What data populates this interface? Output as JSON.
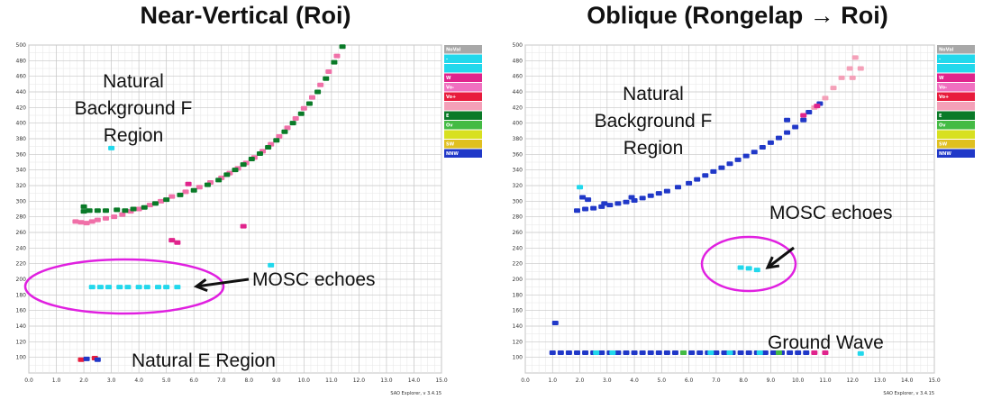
{
  "chart_data": [
    {
      "type": "scatter",
      "title": "Near-Vertical (Roi)",
      "xlabel": "",
      "ylabel": "",
      "xlim": [
        0,
        15
      ],
      "ylim": [
        80,
        500
      ],
      "x_ticks": [
        "0.0",
        "1.0",
        "2.0",
        "3.0",
        "4.0",
        "5.0",
        "6.0",
        "7.0",
        "8.0",
        "9.0",
        "10.0",
        "11.0",
        "12.0",
        "13.0",
        "14.0",
        "15.0"
      ],
      "y_ticks": [
        "100",
        "120",
        "140",
        "160",
        "180",
        "200",
        "220",
        "240",
        "260",
        "280",
        "300",
        "320",
        "340",
        "360",
        "380",
        "400",
        "420",
        "440",
        "460",
        "480",
        "500"
      ],
      "grid": true,
      "legend_position": "right",
      "legend": [
        {
          "label": "NoVal",
          "color": "#a8a8a8"
        },
        {
          "label": "-",
          "color": "#22d8ec"
        },
        {
          "label": "",
          "color": "#22d8ec"
        },
        {
          "label": "W",
          "color": "#e0248c"
        },
        {
          "label": "Vo-",
          "color": "#f070c0"
        },
        {
          "label": "Vo+",
          "color": "#e81c3c"
        },
        {
          "label": "",
          "color": "#f4a0b8"
        },
        {
          "label": "E",
          "color": "#0a7a28"
        },
        {
          "label": "Ov",
          "color": "#44bb44"
        },
        {
          "label": "",
          "color": "#d8e020"
        },
        {
          "label": "SW",
          "color": "#e0c020"
        },
        {
          "label": "NNW",
          "color": "#2038c8"
        }
      ],
      "annotations": [
        {
          "text": "Natural Background F Region",
          "lines": [
            "Natural",
            "Background F",
            "Region"
          ]
        },
        {
          "text": "MOSC echoes"
        },
        {
          "text": "Natural E Region"
        }
      ],
      "series": [
        {
          "color": "#f070a8",
          "points": [
            [
              1.7,
              274
            ],
            [
              1.9,
              273
            ],
            [
              2.1,
              272
            ],
            [
              2.3,
              274
            ],
            [
              2.5,
              276
            ],
            [
              2.8,
              278
            ],
            [
              3.1,
              280
            ],
            [
              3.4,
              283
            ],
            [
              3.7,
              287
            ],
            [
              4.0,
              290
            ],
            [
              4.4,
              295
            ],
            [
              4.8,
              300
            ],
            [
              5.2,
              306
            ],
            [
              5.7,
              312
            ],
            [
              6.2,
              318
            ],
            [
              6.6,
              324
            ],
            [
              7.0,
              330
            ],
            [
              7.3,
              336
            ],
            [
              7.6,
              342
            ],
            [
              7.9,
              349
            ],
            [
              8.2,
              356
            ],
            [
              8.5,
              364
            ],
            [
              8.8,
              373
            ],
            [
              9.1,
              383
            ],
            [
              9.4,
              394
            ],
            [
              9.7,
              406
            ],
            [
              10.0,
              419
            ],
            [
              10.3,
              433
            ],
            [
              10.6,
              449
            ],
            [
              10.9,
              466
            ],
            [
              11.2,
              486
            ]
          ]
        },
        {
          "color": "#0a7a28",
          "points": [
            [
              2.0,
              293
            ],
            [
              2.0,
              287
            ],
            [
              2.2,
              288
            ],
            [
              2.5,
              288
            ],
            [
              2.8,
              288
            ],
            [
              3.2,
              289
            ],
            [
              3.5,
              288
            ],
            [
              3.8,
              290
            ],
            [
              4.2,
              292
            ],
            [
              4.6,
              297
            ],
            [
              5.0,
              302
            ],
            [
              5.5,
              308
            ],
            [
              6.0,
              314
            ],
            [
              6.5,
              321
            ],
            [
              6.9,
              327
            ],
            [
              7.2,
              334
            ],
            [
              7.5,
              340
            ],
            [
              7.8,
              347
            ],
            [
              8.1,
              354
            ],
            [
              8.4,
              361
            ],
            [
              8.7,
              369
            ],
            [
              9.0,
              378
            ],
            [
              9.3,
              389
            ],
            [
              9.6,
              400
            ],
            [
              9.9,
              412
            ],
            [
              10.2,
              425
            ],
            [
              10.5,
              440
            ],
            [
              10.8,
              457
            ],
            [
              11.1,
              478
            ],
            [
              11.4,
              498
            ]
          ]
        },
        {
          "color": "#22d8ec",
          "points": [
            [
              2.3,
              190
            ],
            [
              2.6,
              190
            ],
            [
              2.9,
              190
            ],
            [
              3.3,
              190
            ],
            [
              3.6,
              190
            ],
            [
              4.0,
              190
            ],
            [
              4.3,
              190
            ],
            [
              4.7,
              190
            ],
            [
              5.0,
              190
            ],
            [
              5.4,
              190
            ],
            [
              3.0,
              368
            ],
            [
              8.8,
              218
            ]
          ]
        },
        {
          "color": "#e81c3c",
          "points": [
            [
              1.9,
              97
            ],
            [
              2.4,
              99
            ]
          ]
        },
        {
          "color": "#2038c8",
          "points": [
            [
              2.1,
              98
            ],
            [
              2.5,
              97
            ]
          ]
        },
        {
          "color": "#e0248c",
          "points": [
            [
              5.2,
              250
            ],
            [
              5.4,
              247
            ],
            [
              5.8,
              322
            ],
            [
              7.8,
              268
            ]
          ]
        }
      ]
    },
    {
      "type": "scatter",
      "title": "Oblique (Rongelap → Roi)",
      "xlabel": "",
      "ylabel": "",
      "xlim": [
        0,
        15
      ],
      "ylim": [
        80,
        500
      ],
      "x_ticks": [
        "0.0",
        "1.0",
        "2.0",
        "3.0",
        "4.0",
        "5.0",
        "6.0",
        "7.0",
        "8.0",
        "9.0",
        "10.0",
        "11.0",
        "12.0",
        "13.0",
        "14.0",
        "15.0"
      ],
      "y_ticks": [
        "100",
        "120",
        "140",
        "160",
        "180",
        "200",
        "220",
        "240",
        "260",
        "280",
        "300",
        "320",
        "340",
        "360",
        "380",
        "400",
        "420",
        "440",
        "460",
        "480",
        "500"
      ],
      "grid": true,
      "legend_position": "right",
      "legend": [
        {
          "label": "NoVal",
          "color": "#a8a8a8"
        },
        {
          "label": "-",
          "color": "#22d8ec"
        },
        {
          "label": "",
          "color": "#22d8ec"
        },
        {
          "label": "W",
          "color": "#e0248c"
        },
        {
          "label": "Vo-",
          "color": "#f070c0"
        },
        {
          "label": "Vo+",
          "color": "#e81c3c"
        },
        {
          "label": "",
          "color": "#f4a0b8"
        },
        {
          "label": "E",
          "color": "#0a7a28"
        },
        {
          "label": "Ov",
          "color": "#44bb44"
        },
        {
          "label": "",
          "color": "#d8e020"
        },
        {
          "label": "SW",
          "color": "#e0c020"
        },
        {
          "label": "NNW",
          "color": "#2038c8"
        }
      ],
      "annotations": [
        {
          "text": "Natural Background F Region",
          "lines": [
            "Natural",
            "Background F",
            "Region"
          ]
        },
        {
          "text": "MOSC echoes"
        },
        {
          "text": "Ground Wave"
        }
      ],
      "series": [
        {
          "color": "#2038c8",
          "points": [
            [
              1.9,
              288
            ],
            [
              2.2,
              290
            ],
            [
              2.5,
              291
            ],
            [
              2.8,
              293
            ],
            [
              3.1,
              295
            ],
            [
              3.4,
              297
            ],
            [
              3.7,
              299
            ],
            [
              4.0,
              301
            ],
            [
              4.3,
              304
            ],
            [
              4.6,
              307
            ],
            [
              4.9,
              310
            ],
            [
              5.2,
              313
            ],
            [
              5.6,
              318
            ],
            [
              6.0,
              323
            ],
            [
              6.3,
              328
            ],
            [
              6.6,
              333
            ],
            [
              6.9,
              338
            ],
            [
              7.2,
              343
            ],
            [
              7.5,
              348
            ],
            [
              7.8,
              353
            ],
            [
              8.1,
              358
            ],
            [
              8.4,
              363
            ],
            [
              8.7,
              369
            ],
            [
              9.0,
              375
            ],
            [
              9.3,
              381
            ],
            [
              9.6,
              388
            ],
            [
              9.9,
              395
            ],
            [
              10.2,
              404
            ],
            [
              2.1,
              305
            ],
            [
              2.3,
              302
            ],
            [
              2.9,
              297
            ],
            [
              3.9,
              305
            ],
            [
              9.6,
              404
            ],
            [
              10.4,
              414
            ],
            [
              10.8,
              425
            ]
          ]
        },
        {
          "color": "#f4a0b8",
          "points": [
            [
              10.6,
              420
            ],
            [
              11.0,
              432
            ],
            [
              11.3,
              445
            ],
            [
              11.6,
              458
            ],
            [
              11.9,
              470
            ],
            [
              12.1,
              484
            ],
            [
              12.3,
              470
            ],
            [
              12.0,
              458
            ]
          ]
        },
        {
          "color": "#e0248c",
          "points": [
            [
              10.2,
              410
            ],
            [
              10.7,
              422
            ]
          ]
        },
        {
          "color": "#22d8ec",
          "points": [
            [
              2.0,
              318
            ],
            [
              7.9,
              215
            ],
            [
              8.2,
              214
            ],
            [
              8.5,
              212
            ],
            [
              12.3,
              105
            ]
          ]
        },
        {
          "color": "#2038c8",
          "points": [
            [
              1.0,
              106
            ],
            [
              1.3,
              106
            ],
            [
              1.6,
              106
            ],
            [
              1.9,
              106
            ],
            [
              2.2,
              106
            ],
            [
              2.5,
              106
            ],
            [
              2.8,
              106
            ],
            [
              3.1,
              106
            ],
            [
              3.4,
              106
            ],
            [
              3.7,
              106
            ],
            [
              4.0,
              106
            ],
            [
              4.3,
              106
            ],
            [
              4.6,
              106
            ],
            [
              4.9,
              106
            ],
            [
              5.2,
              106
            ],
            [
              5.5,
              106
            ],
            [
              5.8,
              106
            ],
            [
              6.1,
              106
            ],
            [
              6.4,
              106
            ],
            [
              6.7,
              106
            ],
            [
              7.0,
              106
            ],
            [
              7.3,
              106
            ],
            [
              7.6,
              106
            ],
            [
              7.9,
              106
            ],
            [
              8.2,
              106
            ],
            [
              8.5,
              106
            ],
            [
              8.8,
              106
            ],
            [
              9.1,
              106
            ],
            [
              9.4,
              106
            ],
            [
              9.7,
              106
            ],
            [
              10.0,
              106
            ],
            [
              10.3,
              106
            ],
            [
              1.1,
              144
            ]
          ]
        },
        {
          "color": "#22d8ec",
          "points": [
            [
              2.6,
              106
            ],
            [
              3.2,
              106
            ],
            [
              6.8,
              106
            ],
            [
              7.5,
              106
            ],
            [
              8.6,
              106
            ]
          ]
        },
        {
          "color": "#44bb44",
          "points": [
            [
              5.8,
              106
            ],
            [
              9.3,
              106
            ]
          ]
        },
        {
          "color": "#e0248c",
          "points": [
            [
              10.6,
              106
            ],
            [
              11.0,
              106
            ]
          ]
        }
      ]
    }
  ],
  "version_label": "SAO Explorer, v 3.4.15"
}
